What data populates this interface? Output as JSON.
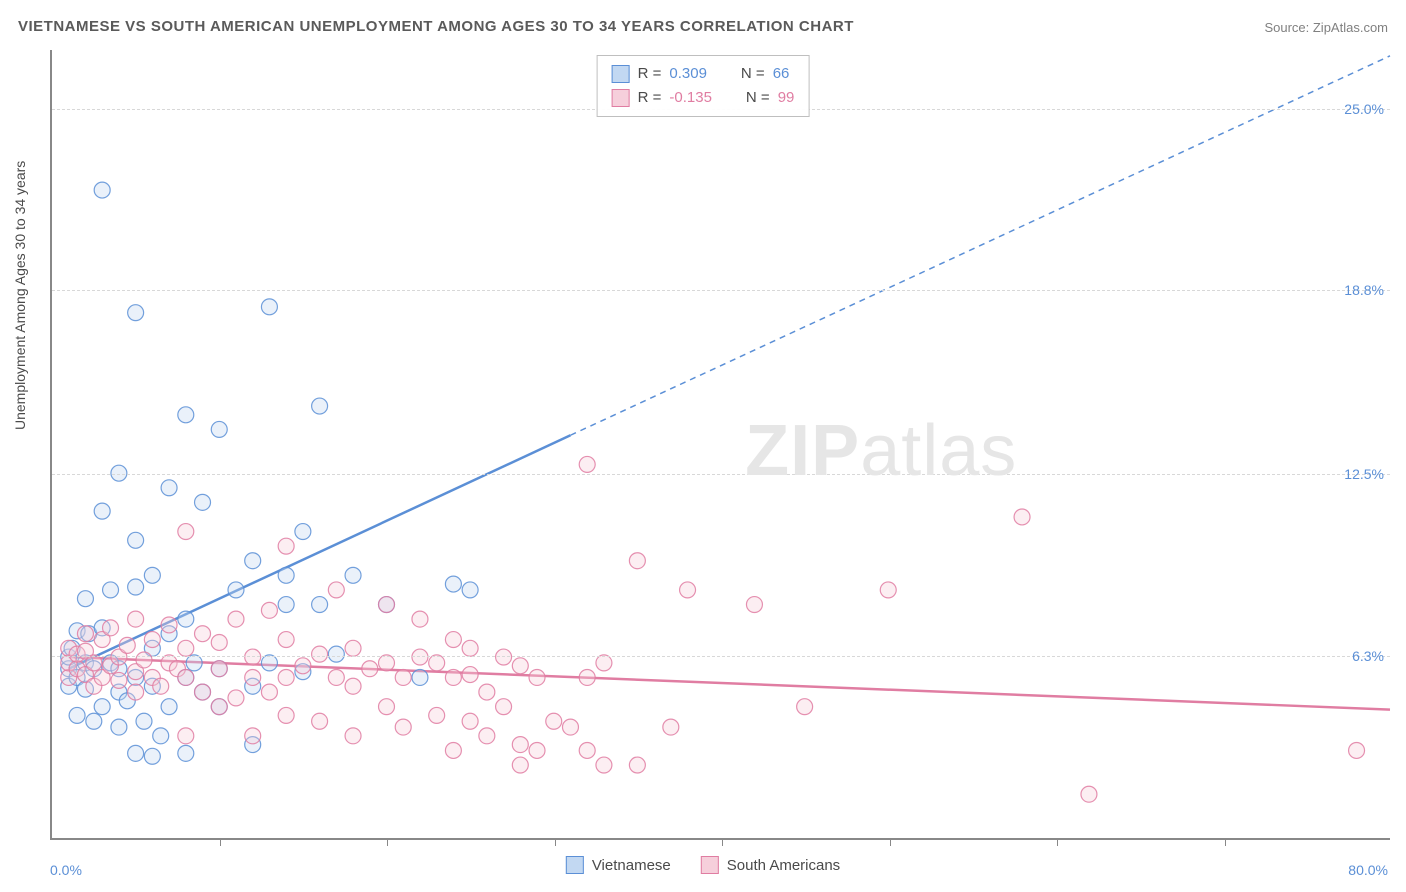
{
  "title": "VIETNAMESE VS SOUTH AMERICAN UNEMPLOYMENT AMONG AGES 30 TO 34 YEARS CORRELATION CHART",
  "source": "Source: ZipAtlas.com",
  "y_axis_label": "Unemployment Among Ages 30 to 34 years",
  "watermark": {
    "pre": "ZIP",
    "post": "atlas"
  },
  "chart": {
    "type": "scatter",
    "xlim": [
      0,
      80
    ],
    "ylim": [
      0,
      27
    ],
    "x_axis_min_label": "0.0%",
    "x_axis_max_label": "80.0%",
    "y_ticks": [
      {
        "value": 6.3,
        "label": "6.3%"
      },
      {
        "value": 12.5,
        "label": "12.5%"
      },
      {
        "value": 18.8,
        "label": "18.8%"
      },
      {
        "value": 25.0,
        "label": "25.0%"
      }
    ],
    "x_tick_values": [
      10,
      20,
      30,
      40,
      50,
      60,
      70
    ],
    "background_color": "#ffffff",
    "grid_color": "#d8d8d8",
    "axis_color": "#888888",
    "title_color": "#5a5a5a",
    "tick_label_color": "#5b8fd6",
    "marker_radius": 8,
    "marker_fill_opacity": 0.35,
    "marker_stroke_opacity": 0.85,
    "trend_line_width": 2.5
  },
  "series": [
    {
      "id": "vietnamese",
      "label": "Vietnamese",
      "color": "#5b8fd6",
      "fill": "#c2d8f2",
      "stroke": "#5b8fd6",
      "r_value": "0.309",
      "n_value": "66",
      "trend": {
        "x1": 1,
        "y1": 5.8,
        "x2": 31,
        "y2": 13.8,
        "dash_x2": 80,
        "dash_y2": 26.8
      },
      "points": [
        [
          1,
          5.2
        ],
        [
          1,
          5.8
        ],
        [
          1,
          6.2
        ],
        [
          1.2,
          6.5
        ],
        [
          1.5,
          5.5
        ],
        [
          1.5,
          7.1
        ],
        [
          1.5,
          4.2
        ],
        [
          2,
          5.1
        ],
        [
          2,
          6.0
        ],
        [
          2,
          8.2
        ],
        [
          2.2,
          7.0
        ],
        [
          2.5,
          5.8
        ],
        [
          2.5,
          4.0
        ],
        [
          3,
          4.5
        ],
        [
          3,
          7.2
        ],
        [
          3,
          11.2
        ],
        [
          3,
          22.2
        ],
        [
          3.5,
          6.0
        ],
        [
          3.5,
          8.5
        ],
        [
          4,
          3.8
        ],
        [
          4,
          5.0
        ],
        [
          4,
          5.8
        ],
        [
          4,
          12.5
        ],
        [
          4.5,
          4.7
        ],
        [
          5,
          2.9
        ],
        [
          5,
          5.5
        ],
        [
          5,
          8.6
        ],
        [
          5,
          10.2
        ],
        [
          5,
          18.0
        ],
        [
          5.5,
          4.0
        ],
        [
          6,
          2.8
        ],
        [
          6,
          5.2
        ],
        [
          6,
          6.5
        ],
        [
          6,
          9.0
        ],
        [
          6.5,
          3.5
        ],
        [
          7,
          4.5
        ],
        [
          7,
          7.0
        ],
        [
          7,
          12.0
        ],
        [
          8,
          2.9
        ],
        [
          8,
          5.5
        ],
        [
          8,
          7.5
        ],
        [
          8,
          14.5
        ],
        [
          8.5,
          6.0
        ],
        [
          9,
          5.0
        ],
        [
          9,
          11.5
        ],
        [
          10,
          4.5
        ],
        [
          10,
          5.8
        ],
        [
          10,
          14.0
        ],
        [
          11,
          8.5
        ],
        [
          12,
          3.2
        ],
        [
          12,
          5.2
        ],
        [
          12,
          9.5
        ],
        [
          13,
          6.0
        ],
        [
          13,
          18.2
        ],
        [
          14,
          8.0
        ],
        [
          14,
          9.0
        ],
        [
          15,
          5.7
        ],
        [
          15,
          10.5
        ],
        [
          16,
          8.0
        ],
        [
          16,
          14.8
        ],
        [
          17,
          6.3
        ],
        [
          18,
          9.0
        ],
        [
          20,
          8.0
        ],
        [
          22,
          5.5
        ],
        [
          24,
          8.7
        ],
        [
          25,
          8.5
        ]
      ]
    },
    {
      "id": "south_americans",
      "label": "South Americans",
      "color": "#e07da2",
      "fill": "#f6cfdb",
      "stroke": "#e07da2",
      "r_value": "-0.135",
      "n_value": "99",
      "trend": {
        "x1": 1,
        "y1": 6.2,
        "x2": 80,
        "y2": 4.4
      },
      "points": [
        [
          1,
          5.5
        ],
        [
          1,
          6.0
        ],
        [
          1,
          6.5
        ],
        [
          1.5,
          5.8
        ],
        [
          1.5,
          6.3
        ],
        [
          2,
          5.6
        ],
        [
          2,
          6.4
        ],
        [
          2,
          7.0
        ],
        [
          2.5,
          5.2
        ],
        [
          2.5,
          6.0
        ],
        [
          3,
          5.5
        ],
        [
          3,
          6.8
        ],
        [
          3.5,
          5.9
        ],
        [
          3.5,
          7.2
        ],
        [
          4,
          5.4
        ],
        [
          4,
          6.2
        ],
        [
          4.5,
          6.6
        ],
        [
          5,
          5.0
        ],
        [
          5,
          5.7
        ],
        [
          5,
          7.5
        ],
        [
          5.5,
          6.1
        ],
        [
          6,
          5.5
        ],
        [
          6,
          6.8
        ],
        [
          6.5,
          5.2
        ],
        [
          7,
          6.0
        ],
        [
          7,
          7.3
        ],
        [
          7.5,
          5.8
        ],
        [
          8,
          3.5
        ],
        [
          8,
          5.5
        ],
        [
          8,
          6.5
        ],
        [
          8,
          10.5
        ],
        [
          9,
          5.0
        ],
        [
          9,
          7.0
        ],
        [
          10,
          4.5
        ],
        [
          10,
          5.8
        ],
        [
          10,
          6.7
        ],
        [
          11,
          4.8
        ],
        [
          11,
          7.5
        ],
        [
          12,
          3.5
        ],
        [
          12,
          5.5
        ],
        [
          12,
          6.2
        ],
        [
          13,
          5.0
        ],
        [
          13,
          7.8
        ],
        [
          14,
          4.2
        ],
        [
          14,
          5.5
        ],
        [
          14,
          6.8
        ],
        [
          14,
          10.0
        ],
        [
          15,
          5.9
        ],
        [
          16,
          4.0
        ],
        [
          16,
          6.3
        ],
        [
          17,
          5.5
        ],
        [
          17,
          8.5
        ],
        [
          18,
          3.5
        ],
        [
          18,
          5.2
        ],
        [
          18,
          6.5
        ],
        [
          19,
          5.8
        ],
        [
          20,
          4.5
        ],
        [
          20,
          6.0
        ],
        [
          20,
          8.0
        ],
        [
          21,
          3.8
        ],
        [
          21,
          5.5
        ],
        [
          22,
          6.2
        ],
        [
          22,
          7.5
        ],
        [
          23,
          4.2
        ],
        [
          23,
          6.0
        ],
        [
          24,
          3.0
        ],
        [
          24,
          5.5
        ],
        [
          24,
          6.8
        ],
        [
          25,
          4.0
        ],
        [
          25,
          5.6
        ],
        [
          25,
          6.5
        ],
        [
          26,
          3.5
        ],
        [
          26,
          5.0
        ],
        [
          27,
          4.5
        ],
        [
          27,
          6.2
        ],
        [
          28,
          2.5
        ],
        [
          28,
          3.2
        ],
        [
          28,
          5.9
        ],
        [
          29,
          3.0
        ],
        [
          29,
          5.5
        ],
        [
          30,
          4.0
        ],
        [
          31,
          3.8
        ],
        [
          32,
          3.0
        ],
        [
          32,
          5.5
        ],
        [
          32,
          12.8
        ],
        [
          33,
          2.5
        ],
        [
          33,
          6.0
        ],
        [
          35,
          2.5
        ],
        [
          35,
          9.5
        ],
        [
          37,
          3.8
        ],
        [
          38,
          8.5
        ],
        [
          42,
          8.0
        ],
        [
          45,
          4.5
        ],
        [
          50,
          8.5
        ],
        [
          58,
          11.0
        ],
        [
          62,
          1.5
        ],
        [
          78,
          3.0
        ]
      ]
    }
  ],
  "stats_box": {
    "r_label": "R =",
    "n_label": "N ="
  },
  "legend": {
    "position": "bottom-center"
  }
}
